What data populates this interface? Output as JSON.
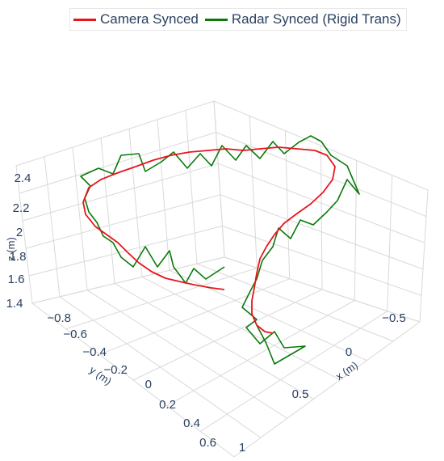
{
  "chart_data": {
    "type": "line3d",
    "legend": {
      "placement": "top-center",
      "items": [
        {
          "name": "Camera Synced",
          "color": "#e8141b"
        },
        {
          "name": "Radar Synced (Rigid Trans)",
          "color": "#0a7a0a"
        }
      ]
    },
    "axes": {
      "x": {
        "title": "x (m)",
        "ticks": [
          "−0.5",
          "0",
          "0.5",
          "1"
        ]
      },
      "y": {
        "title": "y (m)",
        "ticks": [
          "−0.8",
          "−0.6",
          "−0.4",
          "−0.2",
          "0",
          "0.2",
          "0.4",
          "0.6"
        ]
      },
      "z": {
        "title": "z (m)",
        "ticks": [
          "1.4",
          "1.6",
          "1.8",
          "2",
          "2.2",
          "2.4"
        ]
      }
    },
    "grid": true,
    "series": [
      {
        "name": "Camera Synced",
        "color": "#e8141b",
        "path_note": "trajectory shape",
        "points": [
          [
            -0.05,
            0.45,
            1.78
          ],
          [
            -0.02,
            0.32,
            1.82
          ],
          [
            0.05,
            0.18,
            1.9
          ],
          [
            0.12,
            0.02,
            2.0
          ],
          [
            0.18,
            -0.15,
            2.08
          ],
          [
            0.22,
            -0.32,
            2.15
          ],
          [
            0.25,
            -0.5,
            2.22
          ],
          [
            0.22,
            -0.68,
            2.28
          ],
          [
            0.12,
            -0.8,
            2.32
          ],
          [
            -0.05,
            -0.85,
            2.34
          ],
          [
            -0.25,
            -0.82,
            2.36
          ],
          [
            -0.45,
            -0.72,
            2.36
          ],
          [
            -0.62,
            -0.55,
            2.35
          ],
          [
            -0.72,
            -0.35,
            2.32
          ],
          [
            -0.75,
            -0.12,
            2.28
          ],
          [
            -0.7,
            0.1,
            2.2
          ],
          [
            -0.58,
            0.3,
            2.1
          ],
          [
            -0.42,
            0.42,
            2.0
          ],
          [
            -0.25,
            0.5,
            1.92
          ],
          [
            -0.05,
            0.52,
            1.82
          ],
          [
            0.18,
            0.5,
            1.72
          ],
          [
            0.4,
            0.42,
            1.62
          ],
          [
            0.58,
            0.32,
            1.56
          ],
          [
            0.72,
            0.22,
            1.5
          ]
        ]
      },
      {
        "name": "Radar Synced (Rigid Trans)",
        "color": "#0a7a0a",
        "points": [
          [
            -0.05,
            0.45,
            1.78
          ],
          [
            -0.02,
            0.32,
            1.82
          ],
          [
            0.05,
            0.18,
            1.9
          ],
          [
            0.12,
            0.02,
            2.0
          ],
          [
            0.18,
            -0.15,
            2.08
          ],
          [
            0.22,
            -0.32,
            2.15
          ],
          [
            0.25,
            -0.5,
            2.22
          ],
          [
            0.22,
            -0.68,
            2.28
          ],
          [
            0.12,
            -0.8,
            2.32
          ],
          [
            -0.05,
            -0.85,
            2.34
          ],
          [
            -0.25,
            -0.82,
            2.36
          ],
          [
            -0.45,
            -0.72,
            2.36
          ],
          [
            -0.62,
            -0.55,
            2.35
          ],
          [
            -0.72,
            -0.35,
            2.32
          ],
          [
            -0.75,
            -0.12,
            2.28
          ],
          [
            -0.7,
            0.1,
            2.2
          ],
          [
            -0.58,
            0.3,
            2.1
          ],
          [
            -0.42,
            0.42,
            2.0
          ],
          [
            -0.25,
            0.5,
            1.92
          ],
          [
            -0.05,
            0.52,
            1.82
          ],
          [
            0.18,
            0.5,
            1.72
          ],
          [
            0.4,
            0.42,
            1.62
          ],
          [
            0.58,
            0.32,
            1.56
          ],
          [
            0.72,
            0.22,
            1.5
          ]
        ]
      }
    ]
  }
}
